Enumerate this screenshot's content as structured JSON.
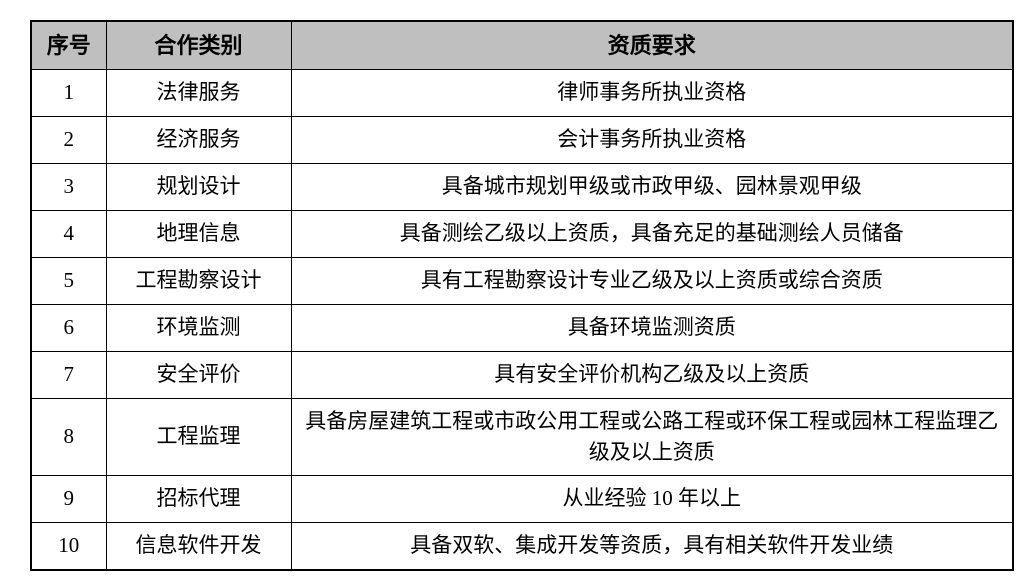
{
  "table": {
    "columns": {
      "no": "序号",
      "category": "合作类别",
      "requirement": "资质要求"
    },
    "rows": [
      {
        "no": "1",
        "category": "法律服务",
        "requirement": "律师事务所执业资格"
      },
      {
        "no": "2",
        "category": "经济服务",
        "requirement": "会计事务所执业资格"
      },
      {
        "no": "3",
        "category": "规划设计",
        "requirement": "具备城市规划甲级或市政甲级、园林景观甲级"
      },
      {
        "no": "4",
        "category": "地理信息",
        "requirement": "具备测绘乙级以上资质，具备充足的基础测绘人员储备"
      },
      {
        "no": "5",
        "category": "工程勘察设计",
        "requirement": "具有工程勘察设计专业乙级及以上资质或综合资质"
      },
      {
        "no": "6",
        "category": "环境监测",
        "requirement": "具备环境监测资质"
      },
      {
        "no": "7",
        "category": "安全评价",
        "requirement": "具有安全评价机构乙级及以上资质"
      },
      {
        "no": "8",
        "category": "工程监理",
        "requirement": "具备房屋建筑工程或市政公用工程或公路工程或环保工程或园林工程监理乙级及以上资质"
      },
      {
        "no": "9",
        "category": "招标代理",
        "requirement": "从业经验 10 年以上"
      },
      {
        "no": "10",
        "category": "信息软件开发",
        "requirement": "具备双软、集成开发等资质，具有相关软件开发业绩"
      }
    ],
    "colors": {
      "header_bg": "#bfbfbf",
      "border": "#000000",
      "text": "#000000",
      "page_bg": "#ffffff"
    }
  }
}
